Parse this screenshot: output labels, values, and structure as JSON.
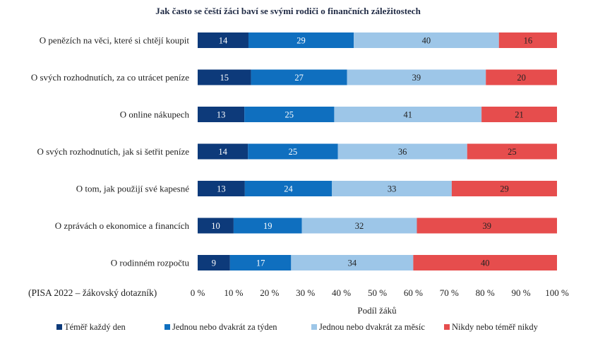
{
  "chart_data": {
    "type": "bar",
    "orientation": "horizontal",
    "stacked": "percent",
    "title": "Jak často se čeští žáci baví se svými rodiči o finančních záležitostech",
    "xlabel": "Podíl žáků",
    "source_note": "(PISA 2022 – žákovský dotazník)",
    "xlim": [
      0,
      100
    ],
    "x_ticks": [
      "0 %",
      "10 %",
      "20 %",
      "30 %",
      "40 %",
      "50 %",
      "60 %",
      "70 %",
      "80 %",
      "90 %",
      "100 %"
    ],
    "legend_position": "bottom",
    "categories": [
      "O penězích na věci, které si chtějí koupit",
      "O svých rozhodnutích, za co utrácet peníze",
      "O online nákupech",
      "O svých rozhodnutích, jak si šetřit peníze",
      "O tom, jak použijí své kapesné",
      "O zprávách o ekonomice a financích",
      "O rodinném rozpočtu"
    ],
    "series": [
      {
        "name": "Téměř každý den",
        "color": "#0d3a7a",
        "label_color": "#ffffff",
        "values": [
          14,
          15,
          13,
          14,
          13,
          10,
          9
        ]
      },
      {
        "name": "Jednou nebo dvakrát za týden",
        "color": "#0f6fbf",
        "label_color": "#ffffff",
        "values": [
          29,
          27,
          25,
          25,
          24,
          19,
          17
        ]
      },
      {
        "name": "Jednou nebo dvakrát za měsíc",
        "color": "#9dc6e8",
        "label_color": "#222222",
        "values": [
          40,
          39,
          41,
          36,
          33,
          32,
          34
        ]
      },
      {
        "name": "Nikdy nebo téměř nikdy",
        "color": "#e64d4d",
        "label_color": "#222222",
        "values": [
          16,
          20,
          21,
          25,
          29,
          39,
          40
        ]
      }
    ]
  }
}
